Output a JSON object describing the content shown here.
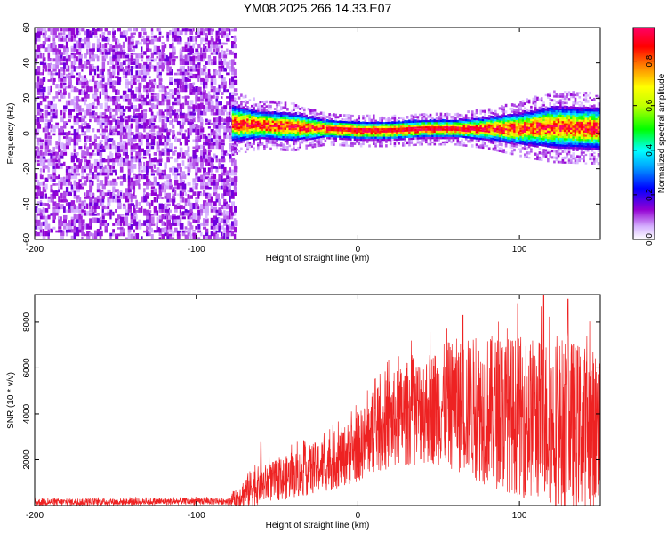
{
  "title": "YM08.2025.266.14.33.E07",
  "chart_data": [
    {
      "type": "heatmap",
      "title": "YM08.2025.266.14.33.E07",
      "xlabel": "Height of straight line (km)",
      "ylabel": "Frequency (Hz)",
      "xlim": [
        -200,
        150
      ],
      "ylim": [
        -60,
        60
      ],
      "x_ticks": [
        -200,
        -100,
        0,
        100
      ],
      "y_ticks": [
        -60,
        -40,
        -20,
        0,
        20,
        40,
        60
      ],
      "noise_region_x": [
        -200,
        -78
      ],
      "signal_band": {
        "x_start": -78,
        "x_end": 150,
        "center_x": [
          -78,
          -60,
          -40,
          -20,
          0,
          20,
          40,
          60,
          80,
          100,
          120,
          150
        ],
        "center_hz": [
          5,
          4,
          3,
          2,
          1,
          1,
          2,
          2,
          2,
          2,
          3,
          2
        ],
        "halfwidth_hz": [
          8,
          6,
          6,
          4,
          4,
          4,
          4,
          4,
          5,
          7,
          9,
          9
        ]
      },
      "colorbar": {
        "label": "Normalized spectral amplitude",
        "range": [
          0.0,
          0.95
        ],
        "ticks": [
          0.0,
          0.2,
          0.4,
          0.6,
          0.8
        ],
        "tick_labels": [
          "0.0",
          "0.2",
          "0.4",
          "0.6",
          "0.8"
        ],
        "colors": [
          "#ffffff",
          "#9400d3",
          "#0000ff",
          "#00ffff",
          "#00ff00",
          "#ffff00",
          "#ff8000",
          "#ff0000",
          "#ff0066"
        ]
      }
    },
    {
      "type": "line",
      "xlabel": "Height of straight line (km)",
      "ylabel": "SNR (10 * v/v)",
      "xlim": [
        -200,
        150
      ],
      "ylim": [
        0,
        9200
      ],
      "x_ticks": [
        -200,
        -100,
        0,
        100
      ],
      "y_ticks": [
        2000,
        4000,
        6000,
        8000
      ],
      "color": "#ee2222",
      "series": [
        {
          "name": "SNR",
          "envelope_x": [
            -200,
            -130,
            -80,
            -75,
            -65,
            -60,
            -50,
            -40,
            -30,
            -20,
            -10,
            0,
            10,
            20,
            30,
            40,
            50,
            60,
            70,
            80,
            90,
            100,
            110,
            120,
            130,
            140,
            150
          ],
          "envelope_mean": [
            150,
            170,
            200,
            350,
            800,
            900,
            1100,
            1300,
            1550,
            1800,
            2100,
            2500,
            3200,
            3600,
            4000,
            4200,
            4350,
            4400,
            4250,
            4150,
            4050,
            3900,
            3750,
            3650,
            3550,
            3450,
            3400
          ],
          "envelope_amp": [
            150,
            150,
            160,
            400,
            900,
            800,
            900,
            1000,
            1100,
            1200,
            1300,
            1500,
            1800,
            2100,
            2300,
            2400,
            2600,
            2900,
            3100,
            3300,
            3400,
            3500,
            3600,
            3700,
            3800,
            3600,
            3400
          ],
          "peak_x": [
            -60,
            25,
            55,
            65,
            115,
            130
          ],
          "peak_y": [
            2750,
            6500,
            7700,
            8300,
            9200,
            9000
          ]
        }
      ]
    }
  ]
}
